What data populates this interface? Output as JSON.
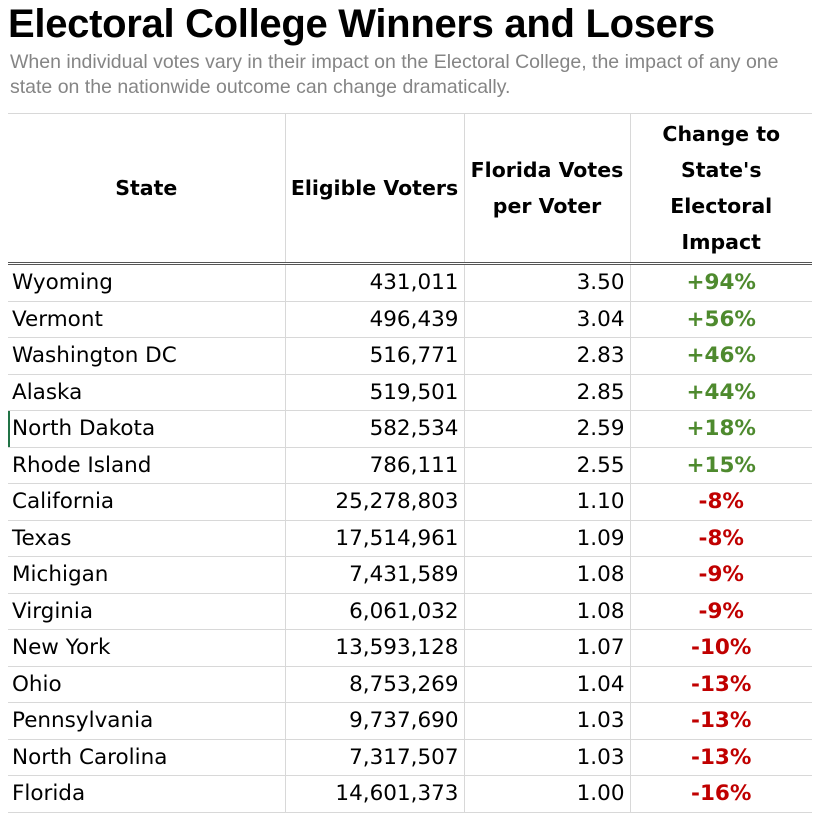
{
  "title": "Electoral College Winners and Losers",
  "subtitle": "When individual votes vary in their impact on the Electoral College, the impact of any one state on the nationwide outcome can change dramatically.",
  "colors": {
    "positive": "#4e8a2e",
    "negative": "#c00000",
    "subtitle": "#858585"
  },
  "chart_data": {
    "type": "table",
    "title": "Electoral College Winners and Losers",
    "subtitle": "When individual votes vary in their impact on the Electoral College, the impact of any one state on the nationwide outcome can change dramatically.",
    "columns": [
      "State",
      "Eligible Voters",
      "Florida Votes per Voter",
      "Change to State's Electoral Impact"
    ],
    "rows": [
      [
        "Wyoming",
        "431,011",
        "3.50",
        "+94%"
      ],
      [
        "Vermont",
        "496,439",
        "3.04",
        "+56%"
      ],
      [
        "Washington DC",
        "516,771",
        "2.83",
        "+46%"
      ],
      [
        "Alaska",
        "519,501",
        "2.85",
        "+44%"
      ],
      [
        "North Dakota",
        "582,534",
        "2.59",
        "+18%"
      ],
      [
        "Rhode Island",
        "786,111",
        "2.55",
        "+15%"
      ],
      [
        "California",
        "25,278,803",
        "1.10",
        "-8%"
      ],
      [
        "Texas",
        "17,514,961",
        "1.09",
        "-8%"
      ],
      [
        "Michigan",
        "7,431,589",
        "1.08",
        "-9%"
      ],
      [
        "Virginia",
        "6,061,032",
        "1.08",
        "-9%"
      ],
      [
        "New York",
        "13,593,128",
        "1.07",
        "-10%"
      ],
      [
        "Ohio",
        "8,753,269",
        "1.04",
        "-13%"
      ],
      [
        "Pennsylvania",
        "9,737,690",
        "1.03",
        "-13%"
      ],
      [
        "North Carolina",
        "7,317,507",
        "1.03",
        "-13%"
      ],
      [
        "Florida",
        "14,601,373",
        "1.00",
        "-16%"
      ]
    ]
  }
}
